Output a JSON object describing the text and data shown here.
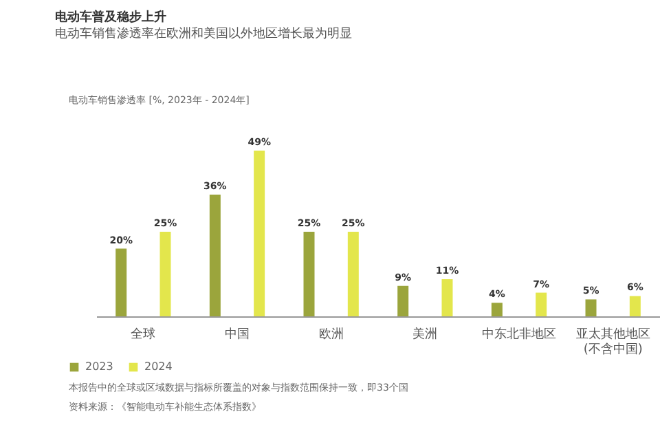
{
  "chart_data": {
    "type": "bar",
    "title": "电动车普及稳步上升",
    "subtitle": "电动车销售渗透率在欧洲和美国以外地区增长最为明显",
    "categories": [
      "全球",
      "中国",
      "欧洲",
      "美洲",
      "中东北非地区",
      "亚太其他地区\n(不含中国)"
    ],
    "series": [
      {
        "name": "2023",
        "color": "#9ba53c",
        "values": [
          20,
          36,
          25,
          9,
          4,
          5
        ],
        "value_labels": [
          "20%",
          "36%",
          "25%",
          "9%",
          "4%",
          "5%"
        ]
      },
      {
        "name": "2024",
        "color": "#e3e64c",
        "values": [
          25,
          49,
          25,
          11,
          7,
          6
        ],
        "value_labels": [
          "25%",
          "49%",
          "25%",
          "11%",
          "7%",
          "6%"
        ]
      }
    ],
    "legend": "bottom left",
    "annotations": [
      "电动车销售渗透率 [%, 2023年 - 2024年]",
      "本报告中的全球或区域数据与指标所覆盖的对象与指数范围保持一致，即33个国",
      "资料来源：《智能电动车补能生态体系指数》"
    ]
  }
}
